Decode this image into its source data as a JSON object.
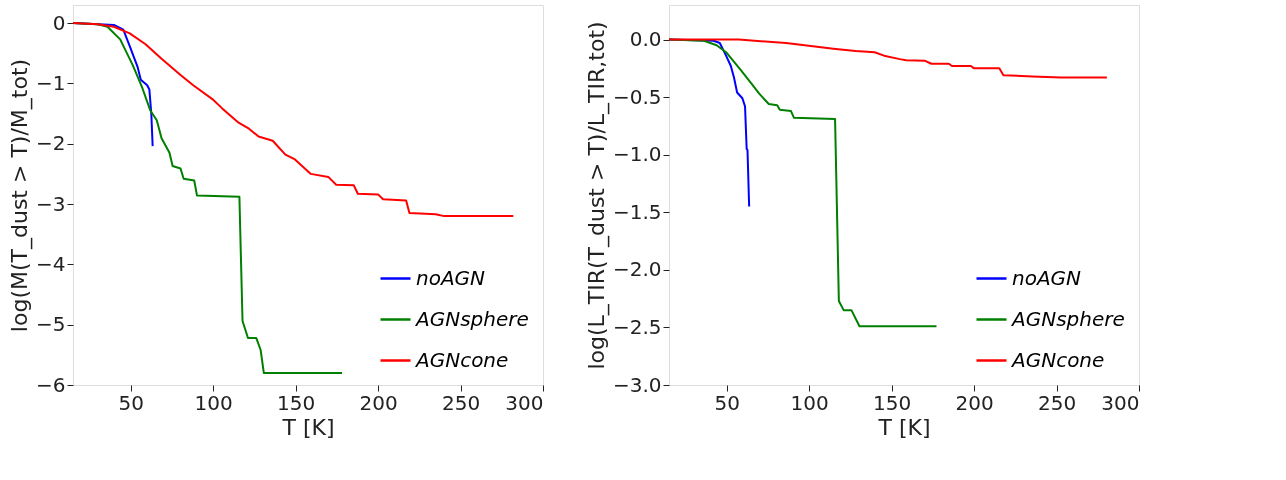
{
  "chart_data": [
    {
      "type": "line",
      "xlabel": "T [K]",
      "ylabel": "log(M(T_dust > T)/M_tot)",
      "xlim": [
        15,
        300
      ],
      "ylim": [
        -6,
        0.3
      ],
      "xticks": [
        50,
        100,
        150,
        200,
        250,
        300
      ],
      "yticks": [
        0,
        {
          "value": -1,
          "label": "−1"
        },
        {
          "value": -2,
          "label": "−2"
        },
        {
          "value": -3,
          "label": "−3"
        },
        {
          "value": -4,
          "label": "−4"
        },
        {
          "value": -5,
          "label": "−5"
        },
        {
          "value": -6,
          "label": "−6"
        }
      ],
      "grid": false,
      "legend": "bottom right",
      "series": [
        {
          "name": "noAGN",
          "color": "#0000ff",
          "x": [
            15,
            39.8,
            45.5,
            49.4,
            54.2,
            56.1,
            60,
            61.3,
            62.5,
            63.3
          ],
          "values": [
            0,
            -0.03,
            -0.11,
            -0.38,
            -0.73,
            -0.94,
            -1.03,
            -1.1,
            -1.51,
            -2.04
          ]
        },
        {
          "name": "AGNsphere",
          "color": "#007f00",
          "x": [
            15,
            30.1,
            35.9,
            43.6,
            51.3,
            57.1,
            61.9,
            65.8,
            68.7,
            73.5,
            75.4,
            80.2,
            82.1,
            88.5,
            90.2,
            115.9,
            117.8,
            121.1,
            126.1,
            128.8,
            130.7,
            178.1
          ],
          "values": [
            0,
            -0.02,
            -0.06,
            -0.27,
            -0.7,
            -1.08,
            -1.45,
            -1.61,
            -1.91,
            -2.15,
            -2.37,
            -2.41,
            -2.58,
            -2.61,
            -2.86,
            -2.88,
            -4.94,
            -5.22,
            -5.22,
            -5.42,
            -5.8,
            -5.8
          ]
        },
        {
          "name": "AGNcone",
          "color": "#ff0000",
          "x": [
            15,
            30.1,
            39.8,
            49.4,
            59,
            68.7,
            80.2,
            87.9,
            99.5,
            105.3,
            114.9,
            121.7,
            127.5,
            136.1,
            143.8,
            149.6,
            159.2,
            169.8,
            174.6,
            185.3,
            187.7,
            200,
            203,
            217,
            219,
            235,
            240,
            282
          ],
          "values": [
            0,
            -0.02,
            -0.06,
            -0.17,
            -0.35,
            -0.59,
            -0.86,
            -1.03,
            -1.26,
            -1.41,
            -1.64,
            -1.75,
            -1.88,
            -1.95,
            -2.18,
            -2.26,
            -2.5,
            -2.55,
            -2.68,
            -2.69,
            -2.83,
            -2.84,
            -2.92,
            -2.94,
            -3.15,
            -3.17,
            -3.2,
            -3.2
          ]
        }
      ]
    },
    {
      "type": "line",
      "xlabel": "T [K]",
      "ylabel": "log(L_TIR(T_dust > T)/L_TIR,tot)",
      "xlim": [
        15,
        300
      ],
      "ylim": [
        -3,
        0.3
      ],
      "xticks": [
        50,
        100,
        150,
        200,
        250,
        300
      ],
      "yticks": [
        {
          "value": 0,
          "label": "0.0"
        },
        {
          "value": -0.5,
          "label": "−0.5"
        },
        {
          "value": -1,
          "label": "−1.0"
        },
        {
          "value": -1.5,
          "label": "−1.5"
        },
        {
          "value": -2,
          "label": "−2.0"
        },
        {
          "value": -2.5,
          "label": "−2.5"
        },
        {
          "value": -3,
          "label": "−3.0"
        }
      ],
      "grid": false,
      "legend": "bottom right",
      "series": [
        {
          "name": "noAGN",
          "color": "#0000ff",
          "x": [
            15,
            42,
            45.8,
            49.6,
            52.5,
            54.4,
            56.3,
            59.5,
            61.1,
            62.1,
            62.6,
            63.6
          ],
          "values": [
            0,
            -0.01,
            -0.03,
            -0.14,
            -0.23,
            -0.33,
            -0.46,
            -0.51,
            -0.58,
            -0.95,
            -0.96,
            -1.45
          ]
        },
        {
          "name": "AGNsphere",
          "color": "#007f00",
          "x": [
            15,
            36.2,
            43.9,
            49.6,
            58.2,
            64.9,
            69.7,
            75.5,
            80.6,
            82.2,
            88.9,
            90.8,
            115.7,
            118,
            120.9,
            125.6,
            130.5,
            177.2
          ],
          "values": [
            0,
            -0.01,
            -0.05,
            -0.11,
            -0.26,
            -0.38,
            -0.47,
            -0.56,
            -0.57,
            -0.61,
            -0.62,
            -0.68,
            -0.69,
            -2.27,
            -2.35,
            -2.35,
            -2.49,
            -2.49
          ]
        },
        {
          "name": "AGNcone",
          "color": "#ff0000",
          "x": [
            15,
            57.3,
            86,
            114.7,
            128.2,
            139.7,
            145.4,
            155,
            158.8,
            170.3,
            174.1,
            184.7,
            186.6,
            198.1,
            200,
            215.3,
            217.8,
            235.4,
            252.7,
            280.5
          ],
          "values": [
            0,
            0,
            -0.03,
            -0.08,
            -0.1,
            -0.11,
            -0.14,
            -0.17,
            -0.18,
            -0.185,
            -0.21,
            -0.21,
            -0.23,
            -0.23,
            -0.25,
            -0.25,
            -0.31,
            -0.32,
            -0.33,
            -0.33
          ]
        }
      ]
    }
  ]
}
